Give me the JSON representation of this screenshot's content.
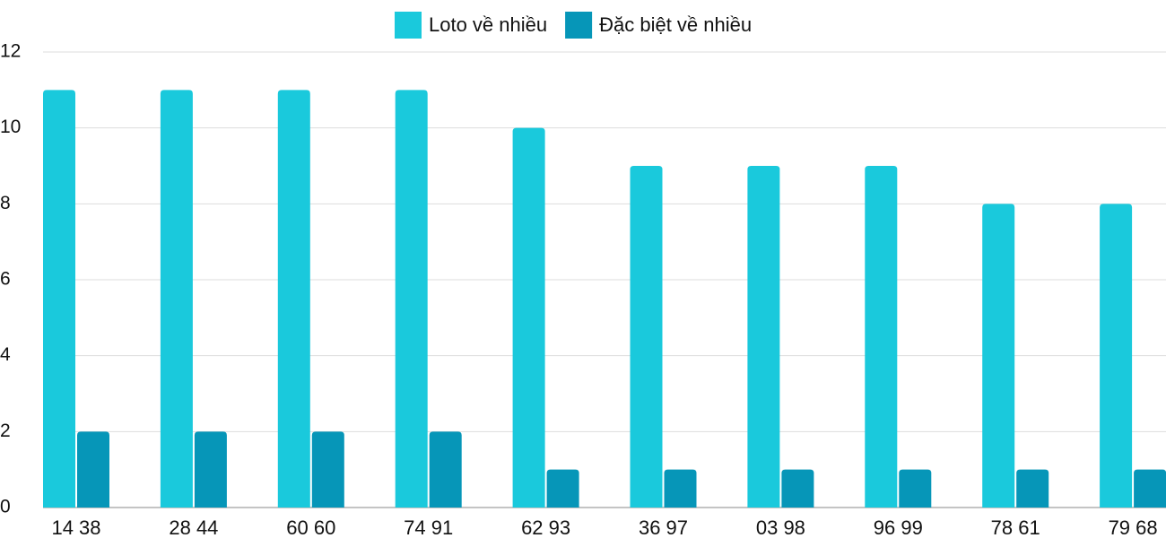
{
  "chart_data": {
    "type": "bar",
    "categories": [
      "14 38",
      "28 44",
      "60 60",
      "74 91",
      "62 93",
      "36 97",
      "03 98",
      "96 99",
      "78 61",
      "79 68"
    ],
    "series": [
      {
        "name": "Loto về nhiều",
        "color": "#1ac9dc",
        "values": [
          11,
          11,
          11,
          11,
          10,
          9,
          9,
          9,
          8,
          8
        ]
      },
      {
        "name": "Đặc biệt về nhiều",
        "color": "#0696b8",
        "values": [
          2,
          2,
          2,
          2,
          1,
          1,
          1,
          1,
          1,
          1
        ]
      }
    ],
    "ylim": [
      0,
      12
    ],
    "yticks": [
      0,
      2,
      4,
      6,
      8,
      10,
      12
    ],
    "grid": true,
    "legend": "top"
  }
}
